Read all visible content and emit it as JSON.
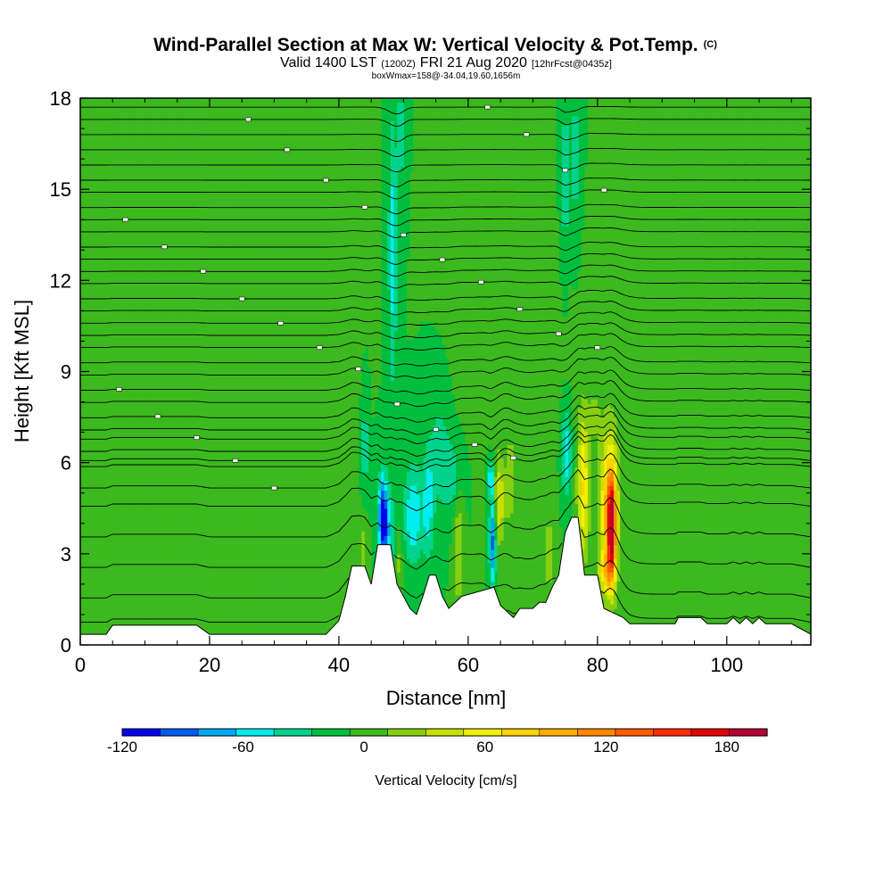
{
  "chart_data": {
    "type": "heatmap",
    "title": "Wind-Parallel Section at Max W: Vertical Velocity & Pot.Temp.",
    "title_mark": "(C)",
    "subtitle_valid": "Valid 1400 LST",
    "subtitle_zulu": "(1200Z)",
    "subtitle_date": "FRI 21 Aug 2020",
    "subtitle_fcst": "[12hrFcst@0435z]",
    "subtitle_box": "boxWmax=158@-34.04,19.60,1656m",
    "xlabel": "Distance [nm]",
    "ylabel": "Height [Kft MSL]",
    "xlim": [
      0,
      113
    ],
    "ylim": [
      0,
      18
    ],
    "xticks": [
      0,
      20,
      40,
      60,
      80,
      100
    ],
    "yticks": [
      0,
      3,
      6,
      9,
      12,
      15,
      18
    ],
    "colorbar": {
      "label": "Vertical Velocity [cm/s]",
      "min": -120,
      "max": 200,
      "step": 20,
      "tick_values": [
        -120,
        -60,
        0,
        60,
        120,
        180
      ],
      "colors": [
        "#0000ee",
        "#005cf0",
        "#00a8f2",
        "#00eeee",
        "#00d48c",
        "#00bf3f",
        "#3cb91e",
        "#86cf10",
        "#c8e000",
        "#f0f000",
        "#ffd200",
        "#ffae00",
        "#ff8800",
        "#ff5a00",
        "#ff2a00",
        "#e60000",
        "#b40032"
      ]
    },
    "background_value": 0,
    "terrain_kft": [
      [
        0,
        0.35
      ],
      [
        4,
        0.35
      ],
      [
        5,
        0.65
      ],
      [
        18,
        0.65
      ],
      [
        20,
        0.35
      ],
      [
        38,
        0.35
      ],
      [
        40,
        0.8
      ],
      [
        41,
        1.6
      ],
      [
        42,
        2.6
      ],
      [
        44,
        2.6
      ],
      [
        45,
        2.0
      ],
      [
        46,
        3.3
      ],
      [
        48,
        3.3
      ],
      [
        49,
        2.0
      ],
      [
        50,
        1.6
      ],
      [
        51,
        1.2
      ],
      [
        52,
        1.0
      ],
      [
        53,
        1.6
      ],
      [
        54,
        2.3
      ],
      [
        55,
        2.3
      ],
      [
        56,
        1.6
      ],
      [
        57,
        1.2
      ],
      [
        59,
        1.6
      ],
      [
        64,
        1.9
      ],
      [
        65,
        1.3
      ],
      [
        67,
        0.9
      ],
      [
        68,
        1.2
      ],
      [
        70,
        1.2
      ],
      [
        71,
        1.4
      ],
      [
        72,
        1.4
      ],
      [
        73,
        1.9
      ],
      [
        74,
        2.3
      ],
      [
        75,
        3.7
      ],
      [
        76,
        4.2
      ],
      [
        77,
        4.2
      ],
      [
        77.5,
        3.3
      ],
      [
        78,
        2.3
      ],
      [
        80,
        2.3
      ],
      [
        81,
        1.2
      ],
      [
        83,
        1.0
      ],
      [
        84,
        0.9
      ],
      [
        85,
        0.7
      ],
      [
        92,
        0.7
      ],
      [
        92.5,
        0.9
      ],
      [
        96,
        0.9
      ],
      [
        97,
        0.7
      ],
      [
        100,
        0.7
      ],
      [
        101,
        0.9
      ],
      [
        102,
        0.7
      ],
      [
        103,
        0.9
      ],
      [
        104,
        0.7
      ],
      [
        105,
        0.9
      ],
      [
        106,
        0.7
      ],
      [
        110,
        0.7
      ],
      [
        113,
        0.35
      ]
    ],
    "w_features": [
      {
        "x": 44,
        "z": 6.5,
        "rx": 0.4,
        "rz": 1.5,
        "w": -40
      },
      {
        "x": 46.8,
        "z": 4.3,
        "rx": 0.7,
        "rz": 1.3,
        "w": -100
      },
      {
        "x": 47.5,
        "z": 3.6,
        "rx": 1.2,
        "rz": 1.5,
        "w": -50
      },
      {
        "x": 48.3,
        "z": 13.0,
        "rx": 0.6,
        "rz": 4.5,
        "w": -50
      },
      {
        "x": 49.5,
        "z": 16.8,
        "rx": 0.5,
        "rz": 1.5,
        "w": -40
      },
      {
        "x": 51.5,
        "z": 4.3,
        "rx": 1.4,
        "rz": 1.6,
        "w": -60
      },
      {
        "x": 53.8,
        "z": 4.6,
        "rx": 0.8,
        "rz": 1.8,
        "w": -50
      },
      {
        "x": 55.5,
        "z": 6.3,
        "rx": 1.5,
        "rz": 1.8,
        "w": -30
      },
      {
        "x": 57.5,
        "z": 5.5,
        "rx": 1.5,
        "rz": 1.2,
        "w": -30
      },
      {
        "x": 63.5,
        "z": 5.5,
        "rx": 0.5,
        "rz": 0.6,
        "w": -60
      },
      {
        "x": 63.8,
        "z": 3.5,
        "rx": 0.5,
        "rz": 1.5,
        "w": -90
      },
      {
        "x": 75.2,
        "z": 6.3,
        "rx": 0.7,
        "rz": 1.3,
        "w": -60
      },
      {
        "x": 75.0,
        "z": 15.5,
        "rx": 0.4,
        "rz": 2.3,
        "w": -50
      },
      {
        "x": 76.5,
        "z": 16.0,
        "rx": 0.5,
        "rz": 2.0,
        "w": -40
      },
      {
        "x": 43.8,
        "z": 2.8,
        "rx": 0.5,
        "rz": 1.2,
        "w": 40
      },
      {
        "x": 40.5,
        "z": 2.2,
        "rx": 0.6,
        "rz": 0.8,
        "w": 20
      },
      {
        "x": 49.2,
        "z": 2.8,
        "rx": 0.5,
        "rz": 1.0,
        "w": 30
      },
      {
        "x": 58.5,
        "z": 3.2,
        "rx": 0.7,
        "rz": 2.0,
        "w": 40
      },
      {
        "x": 64.8,
        "z": 4.8,
        "rx": 0.9,
        "rz": 1.5,
        "w": 60
      },
      {
        "x": 66.5,
        "z": 5.5,
        "rx": 0.6,
        "rz": 1.5,
        "w": 40
      },
      {
        "x": 72.5,
        "z": 3.0,
        "rx": 0.8,
        "rz": 1.5,
        "w": 30
      },
      {
        "x": 77.8,
        "z": 5.2,
        "rx": 0.9,
        "rz": 2.4,
        "w": 80
      },
      {
        "x": 81.8,
        "z": 4.4,
        "rx": 1.4,
        "rz": 2.5,
        "w": 110
      },
      {
        "x": 82.2,
        "z": 3.8,
        "rx": 0.6,
        "rz": 1.6,
        "w": 158
      },
      {
        "x": 81.2,
        "z": 2.4,
        "rx": 1.0,
        "rz": 0.6,
        "w": 60
      },
      {
        "x": 79.5,
        "z": 7.5,
        "rx": 0.8,
        "rz": 0.7,
        "w": 30
      },
      {
        "x": 23,
        "z": 5.5,
        "rx": 5.0,
        "rz": 1.7,
        "w": 8
      },
      {
        "x": 12,
        "z": 7.0,
        "rx": 9.0,
        "rz": 1.0,
        "w": 8
      },
      {
        "x": 35,
        "z": 3.2,
        "rx": 2.0,
        "rz": 2.5,
        "w": 8
      },
      {
        "x": 90,
        "z": 8.0,
        "rx": 12,
        "rz": 2.5,
        "w": 8
      },
      {
        "x": 105,
        "z": 12,
        "rx": 3.0,
        "rz": 3.0,
        "w": 8
      },
      {
        "x": 98,
        "z": 16,
        "rx": 4.0,
        "rz": 2.0,
        "w": 8
      },
      {
        "x": 108,
        "z": 6.5,
        "rx": 3.0,
        "rz": 1.5,
        "w": 8
      },
      {
        "x": 61,
        "z": 12,
        "rx": 3.0,
        "rz": 4.0,
        "w": 8
      },
      {
        "x": 41,
        "z": 14,
        "rx": 2.0,
        "rz": 4.0,
        "w": 8
      },
      {
        "x": 87,
        "z": 15,
        "rx": 2.0,
        "rz": 3.5,
        "w": 8
      }
    ],
    "isentrope_levels_kft": [
      0.8,
      1.6,
      2.6,
      3.6,
      4.6,
      5.2,
      5.9,
      6.1,
      6.4,
      6.8,
      7.1,
      7.5,
      8.0,
      8.4,
      8.9,
      9.3,
      9.8,
      10.2,
      10.6,
      11.0,
      11.4,
      11.9,
      12.3,
      12.7,
      13.1,
      13.6,
      14.0,
      14.4,
      14.9,
      15.3,
      15.8,
      16.3,
      16.8,
      17.3,
      17.7
    ]
  }
}
